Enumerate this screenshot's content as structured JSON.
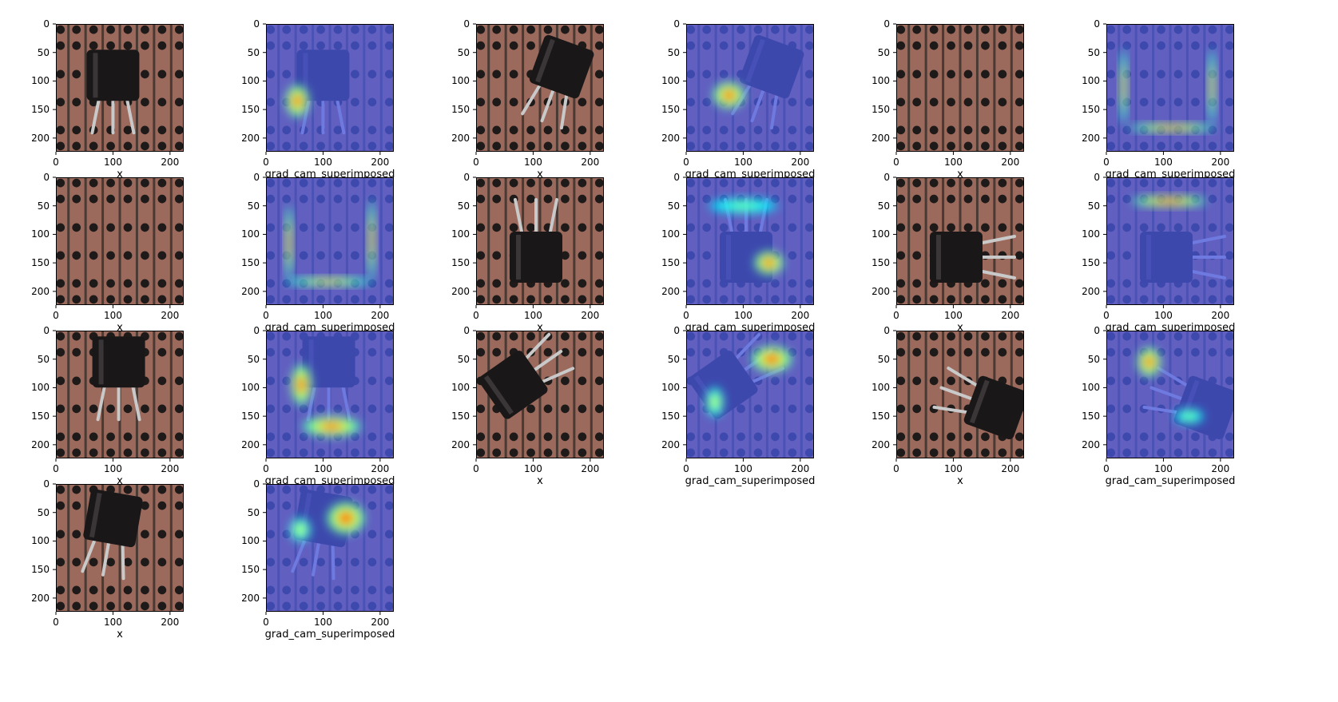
{
  "figure": {
    "colors": {
      "board": "#9b6a5c",
      "strip": "#4a3a34",
      "hole": "#1e1a19",
      "component": "#1a1718",
      "leg": "#c9c9c9",
      "cam_base": "#4b5be8",
      "axes": "#000000"
    }
  },
  "chart_data": [
    {
      "type": "image",
      "panel": 1,
      "kind": "original",
      "component": true,
      "angle": 0,
      "cx": 100,
      "cy": 90,
      "legs": "down",
      "xlabel": "x",
      "xlim": [
        0,
        224
      ],
      "ylim": [
        224,
        0
      ],
      "xticks": [
        "0",
        "100",
        "200"
      ],
      "yticks": [
        "0",
        "50",
        "100",
        "150",
        "200"
      ]
    },
    {
      "type": "heatmap",
      "panel": 2,
      "kind": "grad_cam",
      "component": true,
      "angle": 0,
      "cx": 100,
      "cy": 90,
      "legs": "down",
      "xlabel": "grad_cam_superimposed",
      "xlim": [
        0,
        224
      ],
      "ylim": [
        224,
        0
      ],
      "xticks": [
        "0",
        "100",
        "200"
      ],
      "yticks": [
        "0",
        "50",
        "100",
        "150",
        "200"
      ],
      "hotspots": [
        {
          "x": 55,
          "y": 135,
          "w": 40,
          "h": 55,
          "level": 1.0
        }
      ]
    },
    {
      "type": "image",
      "panel": 3,
      "kind": "original",
      "component": true,
      "angle": 20,
      "cx": 150,
      "cy": 75,
      "legs": "down",
      "xlabel": "x",
      "xlim": [
        0,
        224
      ],
      "ylim": [
        224,
        0
      ],
      "xticks": [
        "0",
        "100",
        "200"
      ],
      "yticks": [
        "0",
        "50",
        "100",
        "150",
        "200"
      ]
    },
    {
      "type": "heatmap",
      "panel": 4,
      "kind": "grad_cam",
      "component": true,
      "angle": 20,
      "cx": 150,
      "cy": 75,
      "legs": "down",
      "xlabel": "grad_cam_superimposed",
      "xlim": [
        0,
        224
      ],
      "ylim": [
        224,
        0
      ],
      "xticks": [
        "0",
        "100",
        "200"
      ],
      "yticks": [
        "0",
        "50",
        "100",
        "150",
        "200"
      ],
      "hotspots": [
        {
          "x": 75,
          "y": 125,
          "w": 55,
          "h": 45,
          "level": 1.0
        }
      ]
    },
    {
      "type": "image",
      "panel": 5,
      "kind": "original",
      "component": false,
      "xlabel": "x",
      "xlim": [
        0,
        224
      ],
      "ylim": [
        224,
        0
      ],
      "xticks": [
        "0",
        "100",
        "200"
      ],
      "yticks": [
        "0",
        "50",
        "100",
        "150",
        "200"
      ]
    },
    {
      "type": "heatmap",
      "panel": 6,
      "kind": "grad_cam",
      "component": false,
      "xlabel": "grad_cam_superimposed",
      "xlim": [
        0,
        224
      ],
      "ylim": [
        224,
        0
      ],
      "xticks": [
        "0",
        "100",
        "200"
      ],
      "yticks": [
        "0",
        "50",
        "100",
        "150",
        "200"
      ],
      "hotspots": [
        {
          "x": 115,
          "y": 182,
          "w": 150,
          "h": 14,
          "level": 0.9
        },
        {
          "x": 30,
          "y": 110,
          "w": 12,
          "h": 130,
          "level": 0.75
        },
        {
          "x": 185,
          "y": 110,
          "w": 12,
          "h": 130,
          "level": 0.75
        }
      ]
    },
    {
      "type": "image",
      "panel": 7,
      "kind": "original",
      "component": false,
      "xlabel": "x",
      "xlim": [
        0,
        224
      ],
      "ylim": [
        224,
        0
      ],
      "xticks": [
        "0",
        "100",
        "200"
      ],
      "yticks": [
        "0",
        "50",
        "100",
        "150",
        "200"
      ]
    },
    {
      "type": "heatmap",
      "panel": 8,
      "kind": "grad_cam",
      "component": false,
      "xlabel": "grad_cam_superimposed",
      "xlim": [
        0,
        224
      ],
      "ylim": [
        224,
        0
      ],
      "xticks": [
        "0",
        "100",
        "200"
      ],
      "yticks": [
        "0",
        "50",
        "100",
        "150",
        "200"
      ],
      "hotspots": [
        {
          "x": 110,
          "y": 183,
          "w": 150,
          "h": 14,
          "level": 0.75
        },
        {
          "x": 40,
          "y": 115,
          "w": 12,
          "h": 130,
          "level": 0.85
        },
        {
          "x": 185,
          "y": 110,
          "w": 12,
          "h": 140,
          "level": 0.85
        }
      ]
    },
    {
      "type": "image",
      "panel": 9,
      "kind": "original",
      "component": true,
      "angle": 0,
      "cx": 105,
      "cy": 140,
      "legs": "up",
      "xlabel": "x",
      "xlim": [
        0,
        224
      ],
      "ylim": [
        224,
        0
      ],
      "xticks": [
        "0",
        "100",
        "200"
      ],
      "yticks": [
        "0",
        "50",
        "100",
        "150",
        "200"
      ]
    },
    {
      "type": "heatmap",
      "panel": 10,
      "kind": "grad_cam",
      "component": true,
      "angle": 0,
      "cx": 105,
      "cy": 140,
      "legs": "up",
      "xlabel": "grad_cam_superimposed",
      "xlim": [
        0,
        224
      ],
      "ylim": [
        224,
        0
      ],
      "xticks": [
        "0",
        "100",
        "200"
      ],
      "yticks": [
        "0",
        "50",
        "100",
        "150",
        "200"
      ],
      "hotspots": [
        {
          "x": 145,
          "y": 150,
          "w": 50,
          "h": 40,
          "level": 1.0
        },
        {
          "x": 100,
          "y": 50,
          "w": 120,
          "h": 25,
          "level": 0.35
        }
      ]
    },
    {
      "type": "image",
      "panel": 11,
      "kind": "original",
      "component": true,
      "angle": 0,
      "cx": 105,
      "cy": 140,
      "legs": "right",
      "xlabel": "x",
      "xlim": [
        0,
        224
      ],
      "ylim": [
        224,
        0
      ],
      "xticks": [
        "0",
        "100",
        "200"
      ],
      "yticks": [
        "0",
        "50",
        "100",
        "150",
        "200"
      ]
    },
    {
      "type": "heatmap",
      "panel": 12,
      "kind": "grad_cam",
      "component": true,
      "angle": 0,
      "cx": 105,
      "cy": 140,
      "legs": "right",
      "xlabel": "grad_cam_superimposed",
      "xlim": [
        0,
        224
      ],
      "ylim": [
        224,
        0
      ],
      "xticks": [
        "0",
        "100",
        "200"
      ],
      "yticks": [
        "0",
        "50",
        "100",
        "150",
        "200"
      ],
      "hotspots": [
        {
          "x": 110,
          "y": 42,
          "w": 130,
          "h": 18,
          "level": 1.0
        }
      ]
    },
    {
      "type": "image",
      "panel": 13,
      "kind": "original",
      "component": true,
      "angle": 0,
      "cx": 110,
      "cy": 55,
      "legs": "down",
      "xlabel": "x",
      "xlim": [
        0,
        224
      ],
      "ylim": [
        224,
        0
      ],
      "xticks": [
        "0",
        "100",
        "200"
      ],
      "yticks": [
        "0",
        "50",
        "100",
        "150",
        "200"
      ]
    },
    {
      "type": "heatmap",
      "panel": 14,
      "kind": "grad_cam",
      "component": true,
      "angle": 0,
      "cx": 110,
      "cy": 55,
      "legs": "down",
      "xlabel": "grad_cam_superimposed",
      "xlim": [
        0,
        224
      ],
      "ylim": [
        224,
        0
      ],
      "xticks": [
        "0",
        "100",
        "200"
      ],
      "yticks": [
        "0",
        "50",
        "100",
        "150",
        "200"
      ],
      "hotspots": [
        {
          "x": 62,
          "y": 95,
          "w": 35,
          "h": 70,
          "level": 1.0
        },
        {
          "x": 115,
          "y": 168,
          "w": 100,
          "h": 35,
          "level": 0.95
        }
      ]
    },
    {
      "type": "image",
      "panel": 15,
      "kind": "original",
      "component": true,
      "angle": -35,
      "cx": 65,
      "cy": 95,
      "legs": "right",
      "xlabel": "x",
      "xlim": [
        0,
        224
      ],
      "ylim": [
        224,
        0
      ],
      "xticks": [
        "0",
        "100",
        "200"
      ],
      "yticks": [
        "0",
        "50",
        "100",
        "150",
        "200"
      ]
    },
    {
      "type": "heatmap",
      "panel": 16,
      "kind": "grad_cam",
      "component": true,
      "angle": -35,
      "cx": 65,
      "cy": 95,
      "legs": "right",
      "xlabel": "grad_cam_superimposed",
      "xlim": [
        0,
        224
      ],
      "ylim": [
        224,
        0
      ],
      "xticks": [
        "0",
        "100",
        "200"
      ],
      "yticks": [
        "0",
        "50",
        "100",
        "150",
        "200"
      ],
      "hotspots": [
        {
          "x": 150,
          "y": 50,
          "w": 70,
          "h": 45,
          "level": 1.0
        },
        {
          "x": 50,
          "y": 125,
          "w": 30,
          "h": 50,
          "level": 0.55
        }
      ]
    },
    {
      "type": "image",
      "panel": 17,
      "kind": "original",
      "component": true,
      "angle": 20,
      "cx": 175,
      "cy": 135,
      "legs": "left",
      "xlabel": "x",
      "xlim": [
        0,
        224
      ],
      "ylim": [
        224,
        0
      ],
      "xticks": [
        "0",
        "100",
        "200"
      ],
      "yticks": [
        "0",
        "50",
        "100",
        "150",
        "200"
      ]
    },
    {
      "type": "heatmap",
      "panel": 18,
      "kind": "grad_cam",
      "component": true,
      "angle": 20,
      "cx": 175,
      "cy": 135,
      "legs": "left",
      "xlabel": "grad_cam_superimposed",
      "xlim": [
        0,
        224
      ],
      "ylim": [
        224,
        0
      ],
      "xticks": [
        "0",
        "100",
        "200"
      ],
      "yticks": [
        "0",
        "50",
        "100",
        "150",
        "200"
      ],
      "hotspots": [
        {
          "x": 75,
          "y": 55,
          "w": 40,
          "h": 50,
          "level": 1.0
        },
        {
          "x": 145,
          "y": 150,
          "w": 50,
          "h": 25,
          "level": 0.4
        }
      ]
    },
    {
      "type": "image",
      "panel": 19,
      "kind": "original",
      "component": true,
      "angle": 10,
      "cx": 100,
      "cy": 60,
      "legs": "down",
      "xlabel": "x",
      "xlim": [
        0,
        224
      ],
      "ylim": [
        224,
        0
      ],
      "xticks": [
        "0",
        "100",
        "200"
      ],
      "yticks": [
        "0",
        "50",
        "100",
        "150",
        "200"
      ]
    },
    {
      "type": "heatmap",
      "panel": 20,
      "kind": "grad_cam",
      "component": true,
      "angle": 10,
      "cx": 100,
      "cy": 60,
      "legs": "down",
      "xlabel": "grad_cam_superimposed",
      "xlim": [
        0,
        224
      ],
      "ylim": [
        224,
        0
      ],
      "xticks": [
        "0",
        "100",
        "200"
      ],
      "yticks": [
        "0",
        "50",
        "100",
        "150",
        "200"
      ],
      "hotspots": [
        {
          "x": 140,
          "y": 60,
          "w": 65,
          "h": 55,
          "level": 1.0
        },
        {
          "x": 60,
          "y": 80,
          "w": 35,
          "h": 40,
          "level": 0.55
        }
      ]
    }
  ]
}
